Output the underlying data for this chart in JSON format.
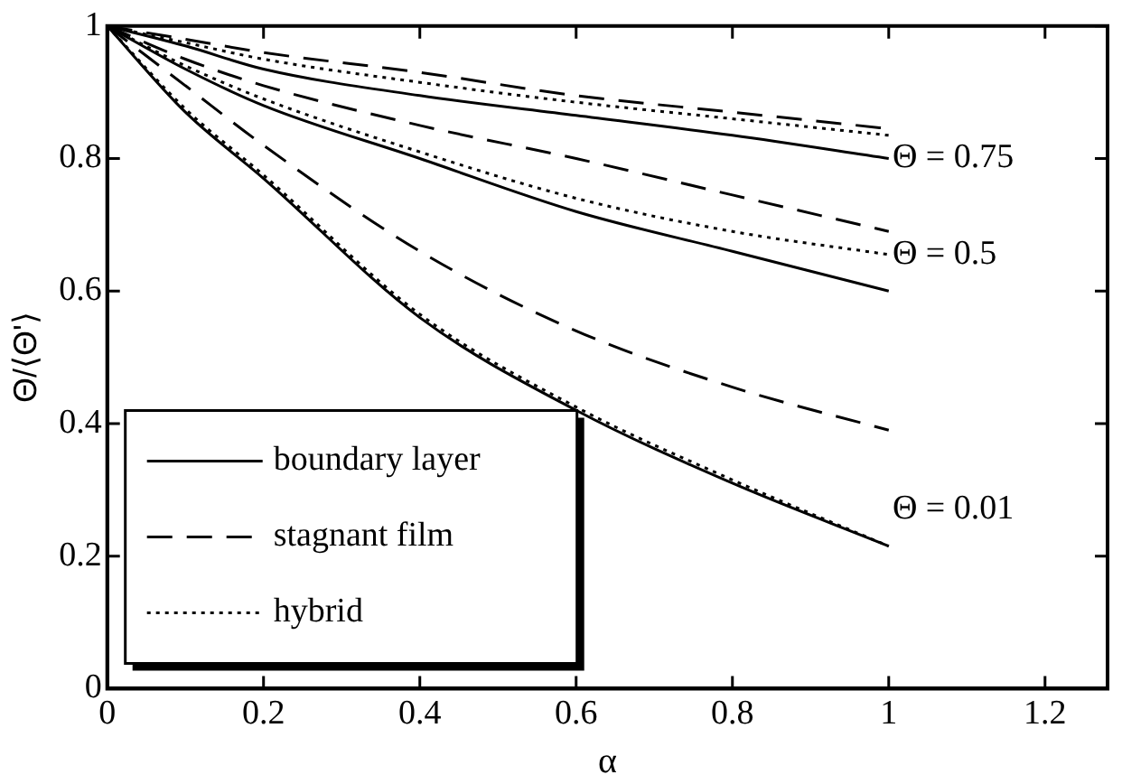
{
  "chart_data": {
    "type": "line",
    "xlabel": "α",
    "ylabel": "Θ/⟨Θ'⟩",
    "x": [
      0,
      0.1,
      0.2,
      0.4,
      0.6,
      0.8,
      1
    ],
    "series": [
      {
        "name": "boundary layer",
        "color": "#000000",
        "line_style": "solid",
        "values": [
          1,
          0.97,
          0.935,
          0.895,
          0.865,
          0.835,
          0.8
        ]
      },
      {
        "color": "#000000",
        "line_style": "solid",
        "values": [
          1,
          0.935,
          0.88,
          0.8,
          0.72,
          0.66,
          0.6
        ]
      },
      {
        "color": "#000000",
        "line_style": "solid",
        "values": [
          1,
          0.87,
          0.77,
          0.56,
          0.42,
          0.31,
          0.215
        ]
      },
      {
        "name": "stagnant film",
        "color": "#000000",
        "line_style": "dashed",
        "values": [
          1,
          0.98,
          0.96,
          0.93,
          0.895,
          0.87,
          0.845
        ]
      },
      {
        "color": "#000000",
        "line_style": "dashed",
        "values": [
          1,
          0.95,
          0.91,
          0.85,
          0.8,
          0.745,
          0.69
        ]
      },
      {
        "color": "#000000",
        "line_style": "dashed",
        "values": [
          1,
          0.91,
          0.82,
          0.66,
          0.54,
          0.455,
          0.39
        ]
      },
      {
        "name": "hybrid",
        "color": "#000000",
        "line_style": "dotted",
        "values": [
          1,
          0.975,
          0.95,
          0.915,
          0.885,
          0.86,
          0.835
        ]
      },
      {
        "color": "#000000",
        "line_style": "dotted",
        "values": [
          1,
          0.94,
          0.89,
          0.81,
          0.74,
          0.69,
          0.655
        ]
      },
      {
        "color": "#000000",
        "line_style": "dotted",
        "values": [
          1,
          0.875,
          0.775,
          0.565,
          0.425,
          0.315,
          0.215
        ]
      }
    ],
    "annotations": [
      "Θ = 0.75",
      "Θ = 0.5",
      "Θ = 0.01"
    ],
    "xlim": [
      0,
      1.28
    ],
    "xticks": [
      0,
      0.2,
      0.4,
      0.6,
      0.8,
      1,
      1.2
    ],
    "ylim": [
      0,
      1
    ],
    "yticks": [
      0,
      0.2,
      0.4,
      0.6,
      0.8,
      1
    ],
    "grid": false,
    "legend": "bottom left",
    "marker": "none"
  }
}
